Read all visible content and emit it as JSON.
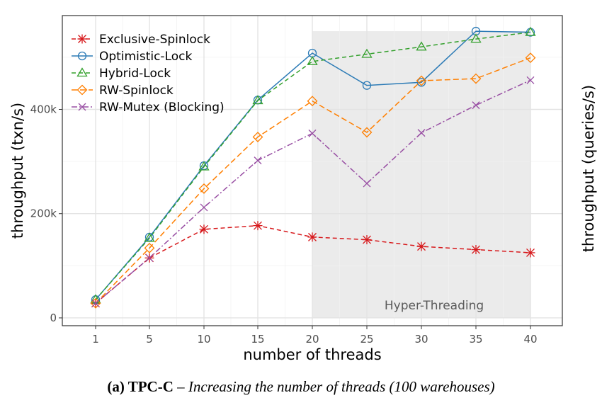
{
  "chart_data": {
    "type": "line",
    "x": [
      1,
      5,
      10,
      15,
      20,
      25,
      30,
      35,
      40
    ],
    "x_tick_labels": [
      "1",
      "5",
      "10",
      "15",
      "20",
      "25",
      "30",
      "35",
      "40"
    ],
    "xlabel": "number of threads",
    "ylabel": "throughput (txn/s)",
    "right_ylabel": "throughput (queries/s)",
    "ylim": [
      -15000,
      580000
    ],
    "y_ticks": [
      0,
      200000,
      400000
    ],
    "y_tick_labels": [
      "0",
      "200k",
      "400k"
    ],
    "grid": true,
    "legend_position": "top-left",
    "annotation": {
      "label": "Hyper-Threading",
      "x_range": [
        20,
        40
      ],
      "y_range": [
        0,
        550000
      ],
      "fill": "#ebebeb"
    },
    "series": [
      {
        "name": "Exclusive-Spinlock",
        "color": "#d7191c",
        "marker": "asterisk",
        "dash": "6,4",
        "values": [
          28000,
          115000,
          170000,
          177000,
          155000,
          150000,
          137000,
          131000,
          125000
        ]
      },
      {
        "name": "Optimistic-Lock",
        "color": "#2c7bb6",
        "marker": "circle",
        "dash": "",
        "values": [
          35000,
          155000,
          292000,
          418000,
          508000,
          446000,
          452000,
          550000,
          548000
        ]
      },
      {
        "name": "Hybrid-Lock",
        "color": "#33a02c",
        "marker": "triangle",
        "dash": "6,4",
        "values": [
          35000,
          153000,
          290000,
          417000,
          492000,
          506000,
          520000,
          535000,
          548000
        ]
      },
      {
        "name": "RW-Spinlock",
        "color": "#ff7f00",
        "marker": "diamond",
        "dash": "8,4",
        "values": [
          28000,
          134000,
          248000,
          347000,
          416000,
          356000,
          455000,
          459000,
          499000
        ]
      },
      {
        "name": "RW-Mutex (Blocking)",
        "color": "#984ea3",
        "marker": "cross",
        "dash": "8,3,2,3",
        "values": [
          28000,
          115000,
          212000,
          302000,
          354000,
          258000,
          355000,
          408000,
          456000
        ]
      }
    ]
  },
  "caption": {
    "label": "(a) TPC-C",
    "separator": " – ",
    "text": "Increasing the number of threads (100 warehouses)"
  }
}
